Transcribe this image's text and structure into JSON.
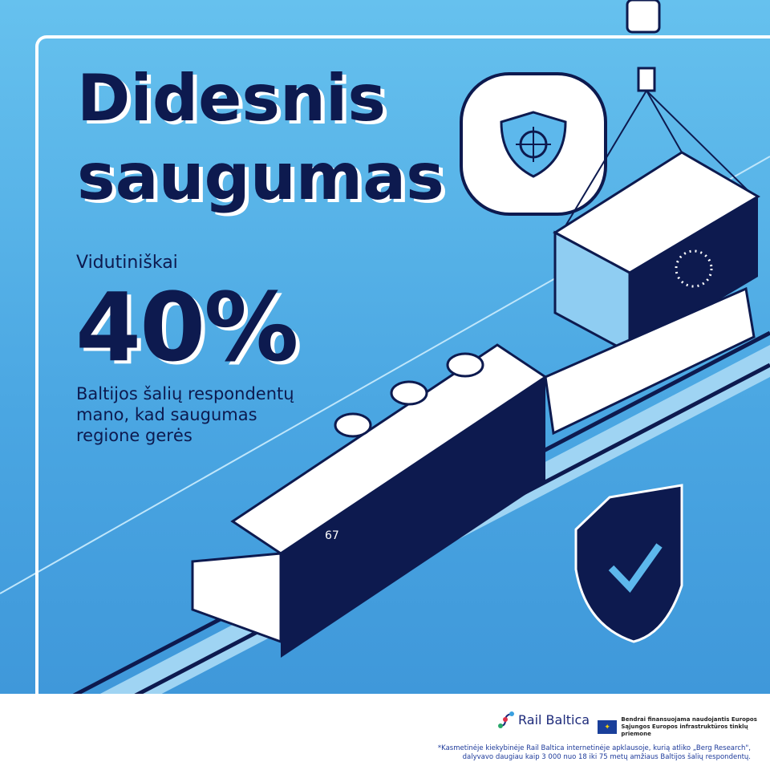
{
  "headline": {
    "line1": "Didesnis",
    "line2": "saugumas"
  },
  "stat": {
    "prefix": "Vidutiniškai",
    "value": "40%",
    "description": "Baltijos šalių respondentų mano, kad saugumas regione gerės"
  },
  "illustration": {
    "locomotive_number": "67",
    "icons": [
      "shield-target-icon",
      "shield-check-icon",
      "eu-container",
      "crane-hook-icon"
    ]
  },
  "footer": {
    "logo_text": "Rail Baltica",
    "eu_text_line1": "Bendrai finansuojama naudojantis Europos",
    "eu_text_line2": "Sąjungos Europos infrastruktūros tinklų priemone",
    "note_line1": "*Kasmetinėje kiekybinėje Rail Baltica internetinėje apklausoje, kurią atliko „Berg Research\",",
    "note_line2": "dalyvavo daugiau kaip 3 000 nuo 18 iki 75 metų amžiaus Baltijos šalių respondentų."
  },
  "colors": {
    "navy": "#0d1a4f",
    "sky": "#5db8ec",
    "white": "#ffffff"
  }
}
